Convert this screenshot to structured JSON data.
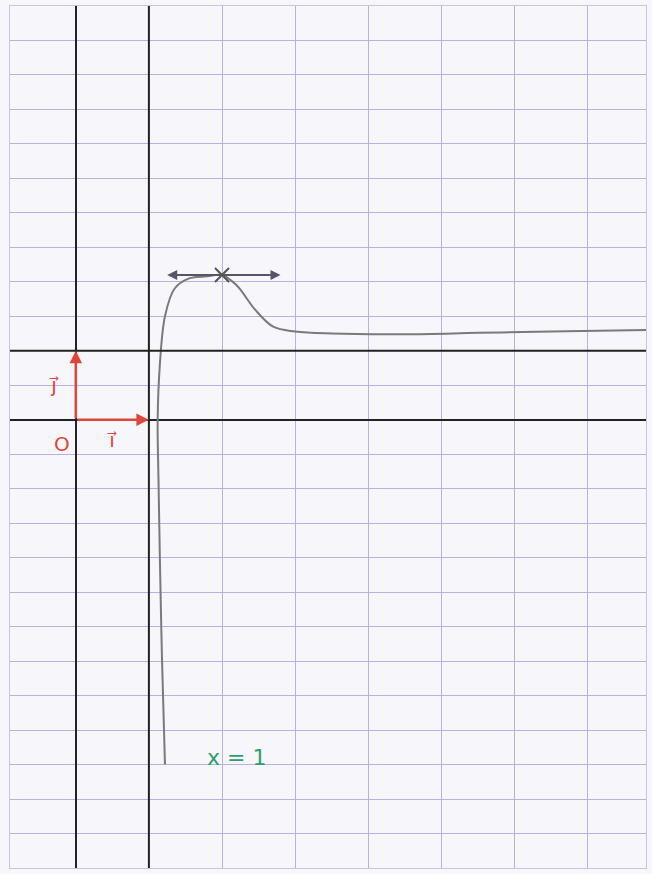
{
  "chart_data": {
    "type": "line",
    "x": [
      1.22,
      1.18,
      1.15,
      1.13,
      1.12,
      1.15,
      1.22,
      1.35,
      1.55,
      1.8,
      2.0,
      2.2,
      2.45,
      2.7,
      3.0,
      3.5,
      4.5,
      5.5,
      6.5,
      7.8
    ],
    "values": [
      -5,
      -3.5,
      -2,
      -0.8,
      0,
      0.8,
      1.5,
      1.9,
      2.05,
      2.08,
      2.1,
      1.95,
      1.6,
      1.35,
      1.28,
      1.25,
      1.24,
      1.26,
      1.28,
      1.3
    ],
    "color": "#7a7a7a",
    "xlim": [
      -0.9,
      7.8
    ],
    "ylim": [
      -6.5,
      6
    ],
    "xticks": [
      0,
      1,
      2,
      3,
      4,
      5,
      6,
      7
    ],
    "yticks": [
      -6,
      -5.5,
      -5,
      -4.5,
      -4,
      -3.5,
      -3,
      -2.5,
      -2,
      -1.5,
      -1,
      -0.5,
      0,
      0.5,
      1,
      1.5,
      2,
      2.5,
      3,
      3.5,
      4,
      4.5,
      5,
      5.5
    ],
    "grid": true,
    "tick_labels": false,
    "vertical_asymptote": 1,
    "horizontal_asymptote": 1,
    "maximum": {
      "x": 2.0,
      "y": 2.1
    },
    "origin": {
      "label": "O",
      "x": 0,
      "y": 0
    },
    "vectors": [
      {
        "label": "i⃗",
        "x": 1,
        "y": 0,
        "color": "#e0453a"
      },
      {
        "label": "j⃗",
        "x": 0,
        "y": 1,
        "color": "#e0453a"
      }
    ],
    "annotations": [
      {
        "text": "x = 1",
        "x": 2.2,
        "y": -4.9,
        "color": "#2e9e6e"
      }
    ]
  }
}
